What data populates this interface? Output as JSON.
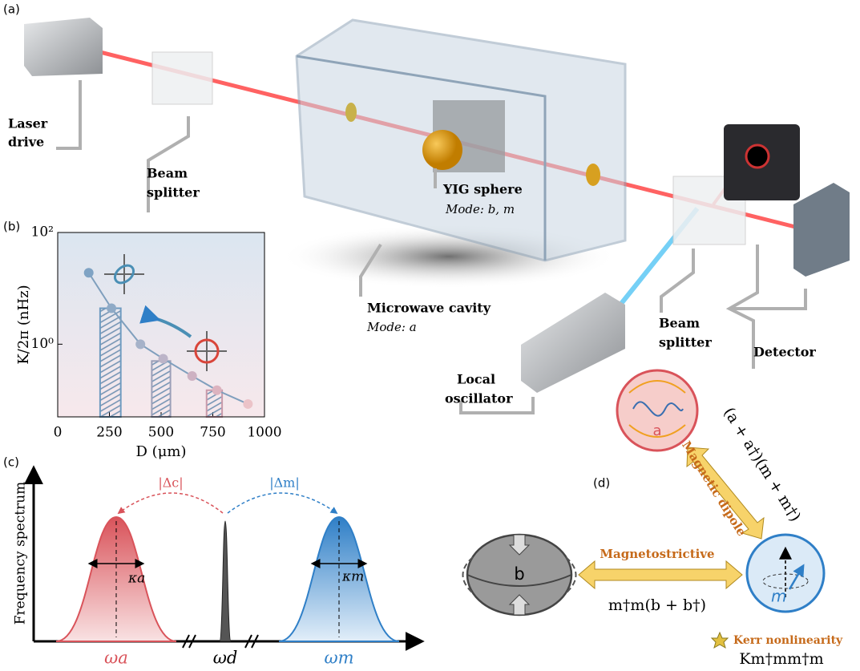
{
  "panel_labels": [
    "(a)",
    "(b)",
    "(c)",
    "(d)"
  ],
  "setup": {
    "laser_drive": [
      "Laser",
      "drive"
    ],
    "beam_splitter_1": [
      "Beam",
      "splitter"
    ],
    "yig_sphere": "YIG sphere",
    "yig_mode": "Mode: b, m",
    "microwave_cavity": "Microwave cavity",
    "cavity_mode": "Mode: a",
    "beam_splitter_2": [
      "Beam",
      "splitter"
    ],
    "detector": "Detector",
    "local_oscillator": [
      "Local",
      "oscillator"
    ]
  },
  "chart_data": {
    "type": "scatter",
    "xlabel": "D (μm)",
    "ylabel": "K/2π (nHz)",
    "x": [
      150,
      260,
      400,
      510,
      650,
      770,
      920
    ],
    "values": [
      19,
      4.4,
      1,
      0.55,
      0.27,
      0.15,
      0.085
    ],
    "point_colors": [
      "#7fa3c4",
      "#8faac6",
      "#a6b2c9",
      "#bcb4c8",
      "#cdb1c2",
      "#dcb3bf",
      "#ebc3c8"
    ],
    "line_color": "#7f9fbd",
    "bars": {
      "edges": [
        [
          205,
          305
        ],
        [
          455,
          545
        ],
        [
          720,
          795
        ]
      ],
      "values": [
        4.4,
        0.5,
        0.15
      ],
      "colors": [
        "#6f9bc0",
        "#9b9fb8",
        "#c99aaa"
      ]
    },
    "xlim": [
      0,
      1000
    ],
    "xticks": [
      0,
      250,
      500,
      750,
      1000
    ],
    "ylim": [
      0.05,
      100
    ],
    "yticks": [
      {
        "value": 1,
        "label": "10⁰"
      },
      {
        "value": 100,
        "label": "10²"
      }
    ],
    "log_y": true
  },
  "spectrum": {
    "ylabel": "Frequency spectrum",
    "delta_c": "|Δc|",
    "delta_m": "|Δm|",
    "kappa_a": "κa",
    "kappa_m": "κm",
    "omega_a": "ωa",
    "omega_d": "ωd",
    "omega_m": "ωm"
  },
  "interactions": {
    "mode_a": "a",
    "mode_b": "b",
    "mode_m": "m",
    "dipole_term": "(a + a†)(m + m†)",
    "dipole_name": "Magnetic dipole",
    "magnetostrictive_name": "Magnetostrictive",
    "magnetostrictive_term": "m†m(b + b†)",
    "kerr_name": "Kerr nonlinearity",
    "kerr_term": "Km†mm†m"
  }
}
